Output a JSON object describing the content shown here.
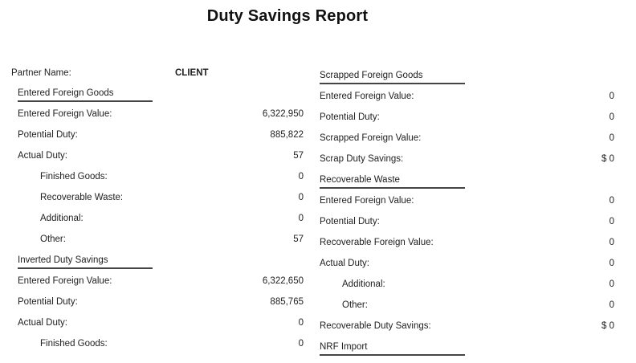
{
  "report": {
    "title": "Duty Savings Report",
    "partner": {
      "label": "Partner Name:",
      "value": "CLIENT"
    },
    "left_sections": [
      {
        "header": "Entered Foreign Goods",
        "rows": [
          {
            "label": "Entered Foreign Value:",
            "value": "6,322,950",
            "indent": 0
          },
          {
            "label": "Potential Duty:",
            "value": "885,822",
            "indent": 0
          },
          {
            "label": "Actual Duty:",
            "value": "57",
            "indent": 0
          },
          {
            "label": "Finished Goods:",
            "value": "0",
            "indent": 1
          },
          {
            "label": "Recoverable Waste:",
            "value": "0",
            "indent": 1
          },
          {
            "label": "Additional:",
            "value": "0",
            "indent": 1
          },
          {
            "label": "Other:",
            "value": "57",
            "indent": 1
          }
        ]
      },
      {
        "header": "Inverted Duty Savings",
        "rows": [
          {
            "label": "Entered Foreign Value:",
            "value": "6,322,650",
            "indent": 0
          },
          {
            "label": "Potential Duty:",
            "value": "885,765",
            "indent": 0
          },
          {
            "label": "Actual Duty:",
            "value": "0",
            "indent": 0
          },
          {
            "label": "Finished Goods:",
            "value": "0",
            "indent": 1
          }
        ]
      }
    ],
    "right_sections": [
      {
        "header": "Scrapped Foreign Goods",
        "rows": [
          {
            "label": "Entered Foreign Value:",
            "value": "0",
            "indent": 0
          },
          {
            "label": "Potential Duty:",
            "value": "0",
            "indent": 0
          },
          {
            "label": "Scrapped Foreign Value:",
            "value": "0",
            "indent": 0
          },
          {
            "label": "Scrap Duty Savings:",
            "value": "$ 0",
            "indent": 0
          }
        ]
      },
      {
        "header": "Recoverable Waste",
        "rows": [
          {
            "label": "Entered Foreign Value:",
            "value": "0",
            "indent": 0
          },
          {
            "label": "Potential Duty:",
            "value": "0",
            "indent": 0
          },
          {
            "label": "Recoverable Foreign Value:",
            "value": "0",
            "indent": 0
          },
          {
            "label": "Actual Duty:",
            "value": "0",
            "indent": 0
          },
          {
            "label": "Additional:",
            "value": "0",
            "indent": 1
          },
          {
            "label": "Other:",
            "value": "0",
            "indent": 1
          },
          {
            "label": "Recoverable Duty Savings:",
            "value": "$ 0",
            "indent": 0
          }
        ]
      },
      {
        "header": "NRF Import",
        "partial": true,
        "rows": []
      }
    ],
    "colors": {
      "background": "#ffffff",
      "text": "#212121",
      "underline": "#454545"
    }
  }
}
